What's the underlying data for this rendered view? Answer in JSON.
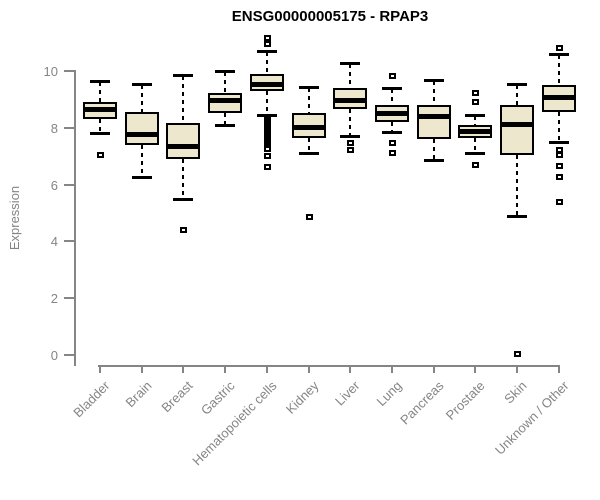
{
  "title": "ENSG00000005175 - RPAP3",
  "y_axis": {
    "label": "Expression",
    "ticks": [
      "0",
      "2",
      "4",
      "6",
      "8",
      "10"
    ],
    "tick_values": [
      0,
      2,
      4,
      6,
      8,
      10
    ]
  },
  "x_axis": {
    "categories": [
      "Bladder",
      "Brain",
      "Breast",
      "Gastric",
      "Hematopoietic cells",
      "Kidney",
      "Liver",
      "Lung",
      "Pancreas",
      "Prostate",
      "Skin",
      "Unknown / Other"
    ]
  },
  "colors": {
    "box_fill": "#EDE8CD",
    "box_border": "#000000",
    "median": "#000000",
    "axis": "#858585",
    "title": "#000000",
    "background": "#FFFFFF"
  },
  "chart_data": {
    "type": "boxplot",
    "title": "ENSG00000005175 - RPAP3",
    "xlabel": "",
    "ylabel": "Expression",
    "ylim": [
      0,
      10
    ],
    "grid": false,
    "legend": false,
    "categories": [
      "Bladder",
      "Brain",
      "Breast",
      "Gastric",
      "Hematopoietic cells",
      "Kidney",
      "Liver",
      "Lung",
      "Pancreas",
      "Prostate",
      "Skin",
      "Unknown / Other"
    ],
    "series": [
      {
        "category": "Bladder",
        "whisker_low": 7.8,
        "q1": 8.3,
        "median": 8.65,
        "q3": 8.9,
        "whisker_high": 9.6,
        "outliers": [
          7.05
        ]
      },
      {
        "category": "Brain",
        "whisker_low": 6.25,
        "q1": 7.4,
        "median": 7.75,
        "q3": 8.55,
        "whisker_high": 9.5,
        "outliers": []
      },
      {
        "category": "Breast",
        "whisker_low": 5.5,
        "q1": 6.9,
        "median": 7.35,
        "q3": 8.15,
        "whisker_high": 9.8,
        "outliers": [
          4.4
        ]
      },
      {
        "category": "Gastric",
        "whisker_low": 8.1,
        "q1": 8.5,
        "median": 8.95,
        "q3": 9.2,
        "whisker_high": 9.95,
        "outliers": []
      },
      {
        "category": "Hematopoietic cells",
        "whisker_low": 8.45,
        "q1": 9.27,
        "median": 9.53,
        "q3": 9.88,
        "whisker_high": 10.65,
        "outliers": [
          11.15,
          10.95,
          8.37,
          8.3,
          8.23,
          8.16,
          8.09,
          8.02,
          7.95,
          7.88,
          7.81,
          7.74,
          7.67,
          7.6,
          7.53,
          7.46,
          7.39,
          7.32,
          7.25,
          7.0,
          6.6
        ]
      },
      {
        "category": "Kidney",
        "whisker_low": 7.1,
        "q1": 7.65,
        "median": 8.0,
        "q3": 8.5,
        "whisker_high": 9.4,
        "outliers": [
          4.85
        ]
      },
      {
        "category": "Liver",
        "whisker_low": 7.7,
        "q1": 8.65,
        "median": 8.95,
        "q3": 9.4,
        "whisker_high": 10.25,
        "outliers": [
          7.45,
          7.2
        ]
      },
      {
        "category": "Lung",
        "whisker_low": 7.85,
        "q1": 8.2,
        "median": 8.5,
        "q3": 8.8,
        "whisker_high": 9.35,
        "outliers": [
          9.8,
          7.45,
          7.1
        ]
      },
      {
        "category": "Pancreas",
        "whisker_low": 6.85,
        "q1": 7.6,
        "median": 8.4,
        "q3": 8.8,
        "whisker_high": 9.65,
        "outliers": []
      },
      {
        "category": "Prostate",
        "whisker_low": 7.1,
        "q1": 7.65,
        "median": 7.85,
        "q3": 8.1,
        "whisker_high": 8.4,
        "outliers": [
          9.2,
          8.9,
          6.7
        ]
      },
      {
        "category": "Skin",
        "whisker_low": 4.9,
        "q1": 7.05,
        "median": 8.1,
        "q3": 8.8,
        "whisker_high": 9.5,
        "outliers": [
          0.05
        ]
      },
      {
        "category": "Unknown / Other",
        "whisker_low": 7.5,
        "q1": 8.55,
        "median": 9.05,
        "q3": 9.5,
        "whisker_high": 10.55,
        "outliers": [
          10.8,
          7.2,
          7.05,
          6.65,
          6.25,
          5.4
        ]
      }
    ]
  }
}
